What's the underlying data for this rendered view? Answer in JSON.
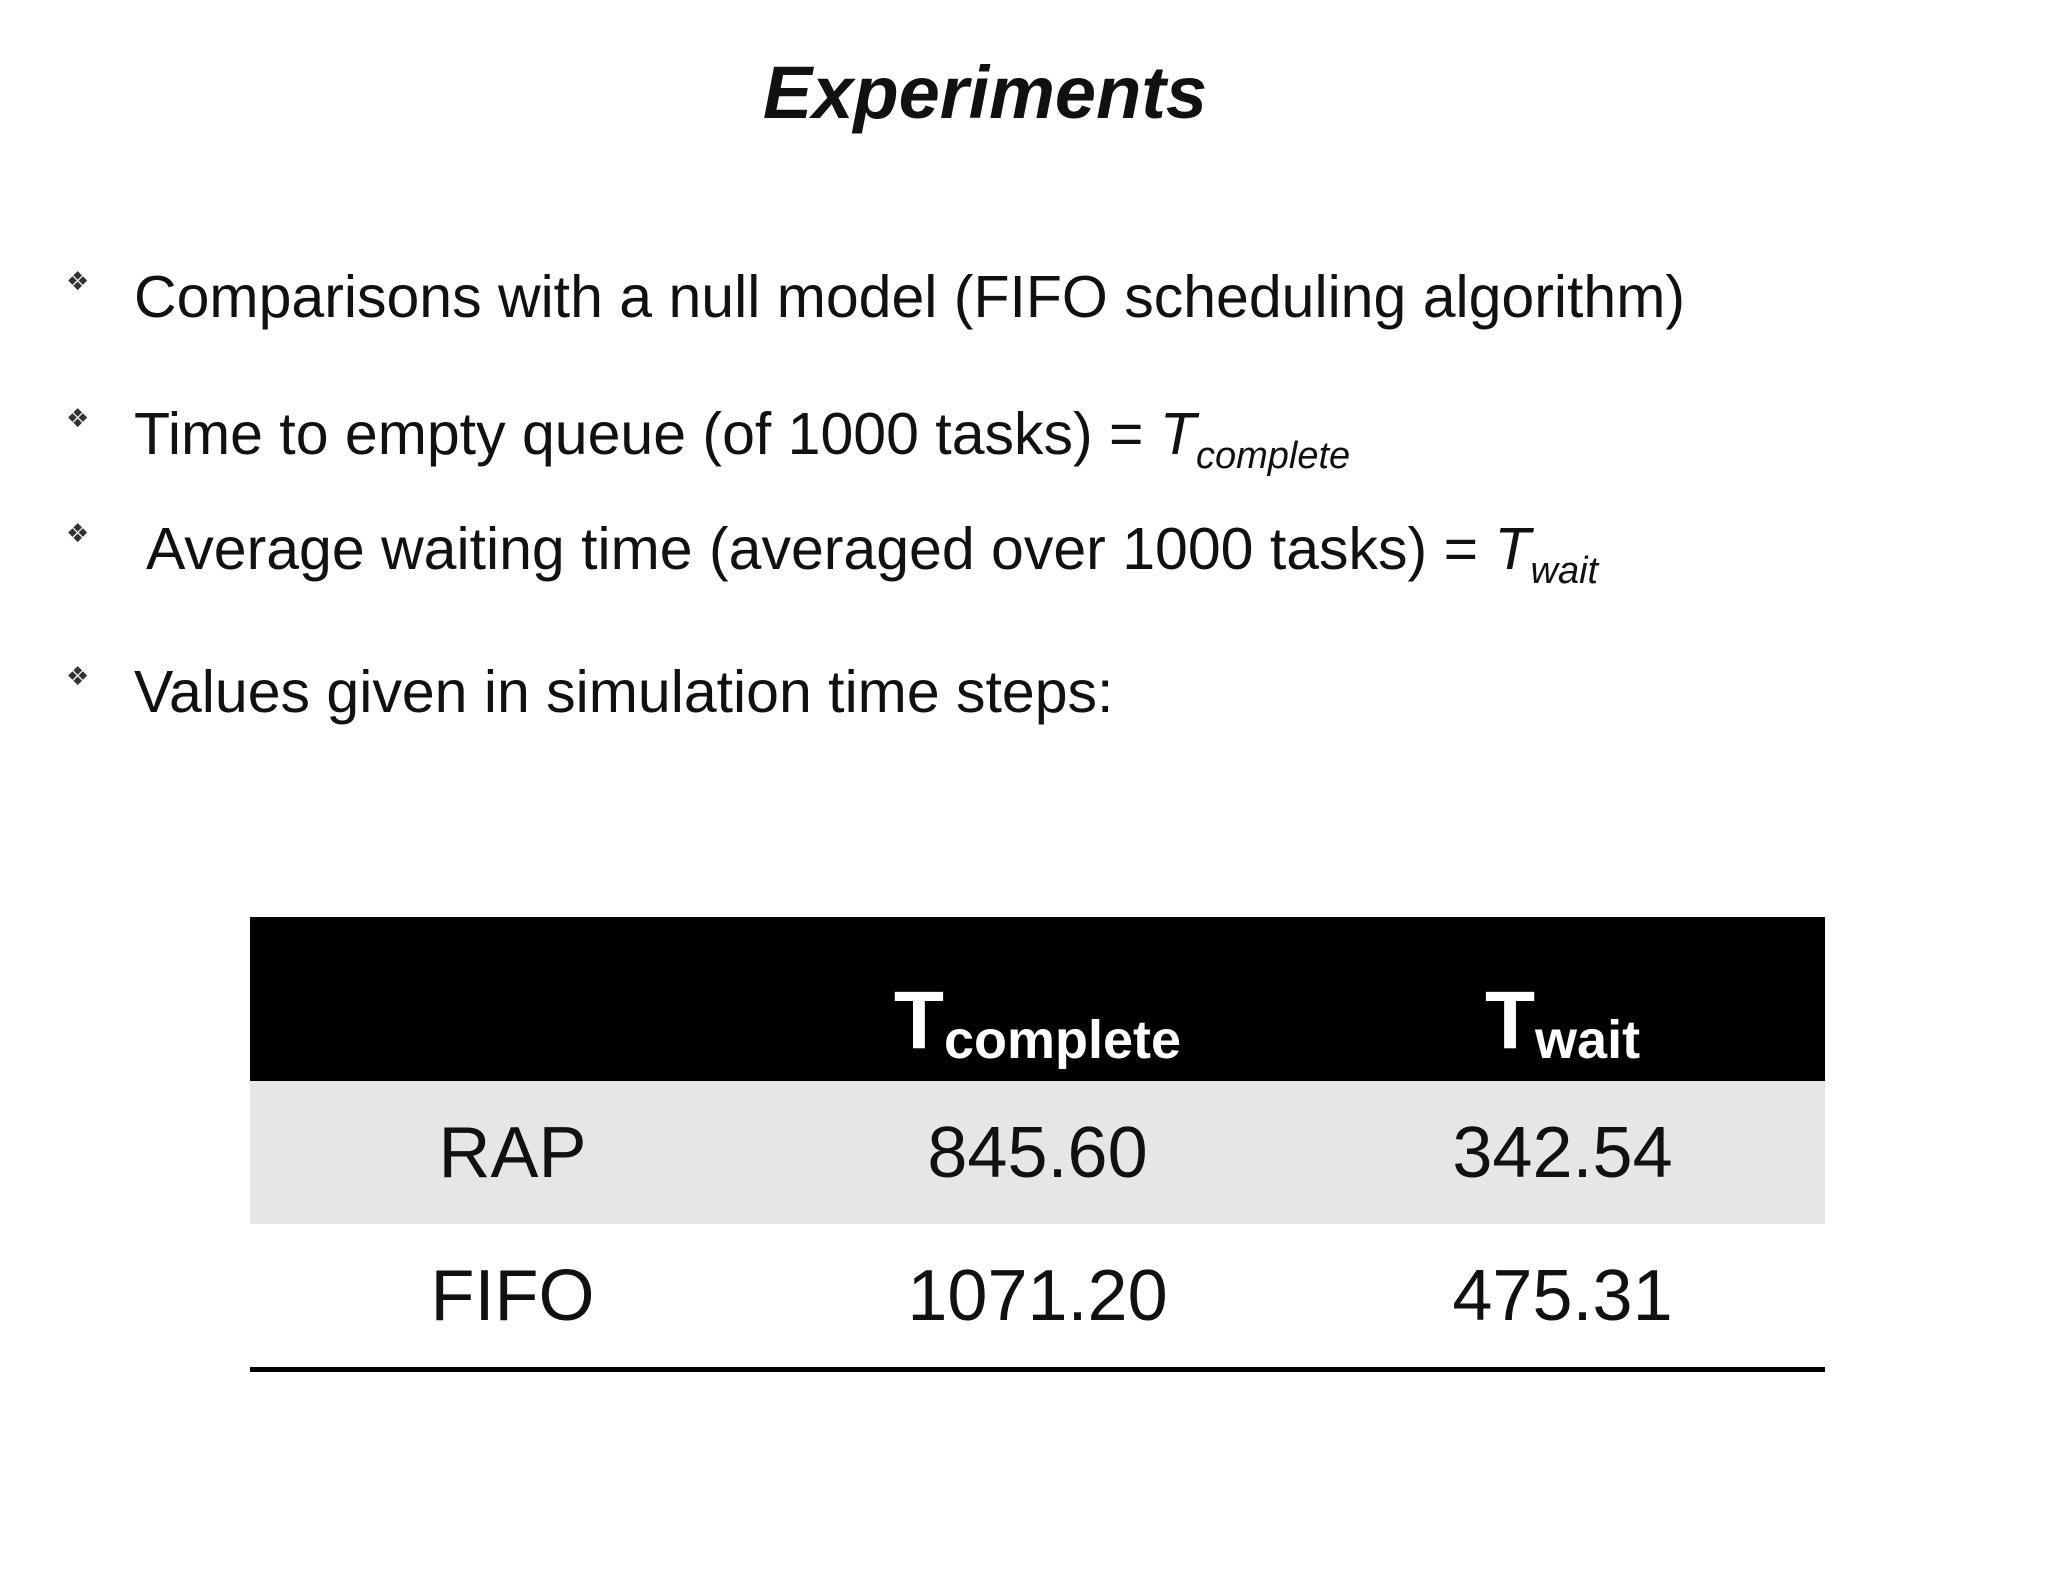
{
  "title": "Experiments",
  "bullets": [
    {
      "text": "Comparisons with a null model (FIFO scheduling algorithm)"
    },
    {
      "text": "Time to empty queue (of 1000 tasks) = ",
      "math_symbol": "T",
      "math_subscript": "complete"
    },
    {
      "text": "Average waiting time (averaged over 1000 tasks) = ",
      "math_symbol": "T",
      "math_subscript": "wait"
    },
    {
      "text": "Values given in simulation time steps:"
    }
  ],
  "table": {
    "headers": [
      {
        "symbol": "",
        "subscript": ""
      },
      {
        "symbol": "T",
        "subscript": "complete"
      },
      {
        "symbol": "T",
        "subscript": "wait"
      }
    ],
    "rows": [
      {
        "method": "RAP",
        "t_complete": "845.60",
        "t_wait": "342.54"
      },
      {
        "method": "FIFO",
        "t_complete": "1071.20",
        "t_wait": "475.31"
      }
    ]
  },
  "icons": {
    "bullet_marker": "four-diamond-bullet-icon"
  },
  "colors": {
    "header_background": "#000000",
    "header_text": "#ffffff",
    "shaded_row": "#e6e6e6",
    "text": "#111111"
  }
}
